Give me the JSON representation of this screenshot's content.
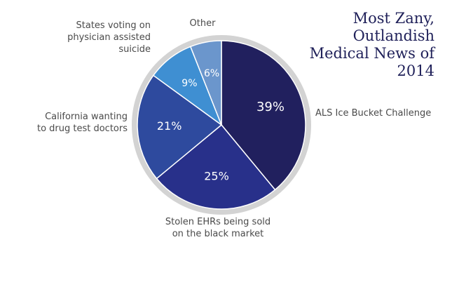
{
  "chart_data": {
    "type": "pie",
    "title_lines": [
      "Most Zany,",
      "Outlandish",
      "Medical News of",
      "2014"
    ],
    "slices": [
      {
        "label_lines": [
          "ALS Ice Bucket Challenge"
        ],
        "value": 39,
        "display": "39%",
        "color": "#21205e"
      },
      {
        "label_lines": [
          "Stolen EHRs being sold",
          "on the black market"
        ],
        "value": 25,
        "display": "25%",
        "color": "#28308a"
      },
      {
        "label_lines": [
          "California wanting",
          "to drug test doctors"
        ],
        "value": 21,
        "display": "21%",
        "color": "#2e4a9e"
      },
      {
        "label_lines": [
          "States voting on",
          "physician assisted",
          "suicide"
        ],
        "value": 9,
        "display": "9%",
        "color": "#3f8fd2"
      },
      {
        "label_lines": [
          "Other"
        ],
        "value": 6,
        "display": "6%",
        "color": "#6b96cc"
      }
    ],
    "ring_color": "#d3d3d3"
  }
}
